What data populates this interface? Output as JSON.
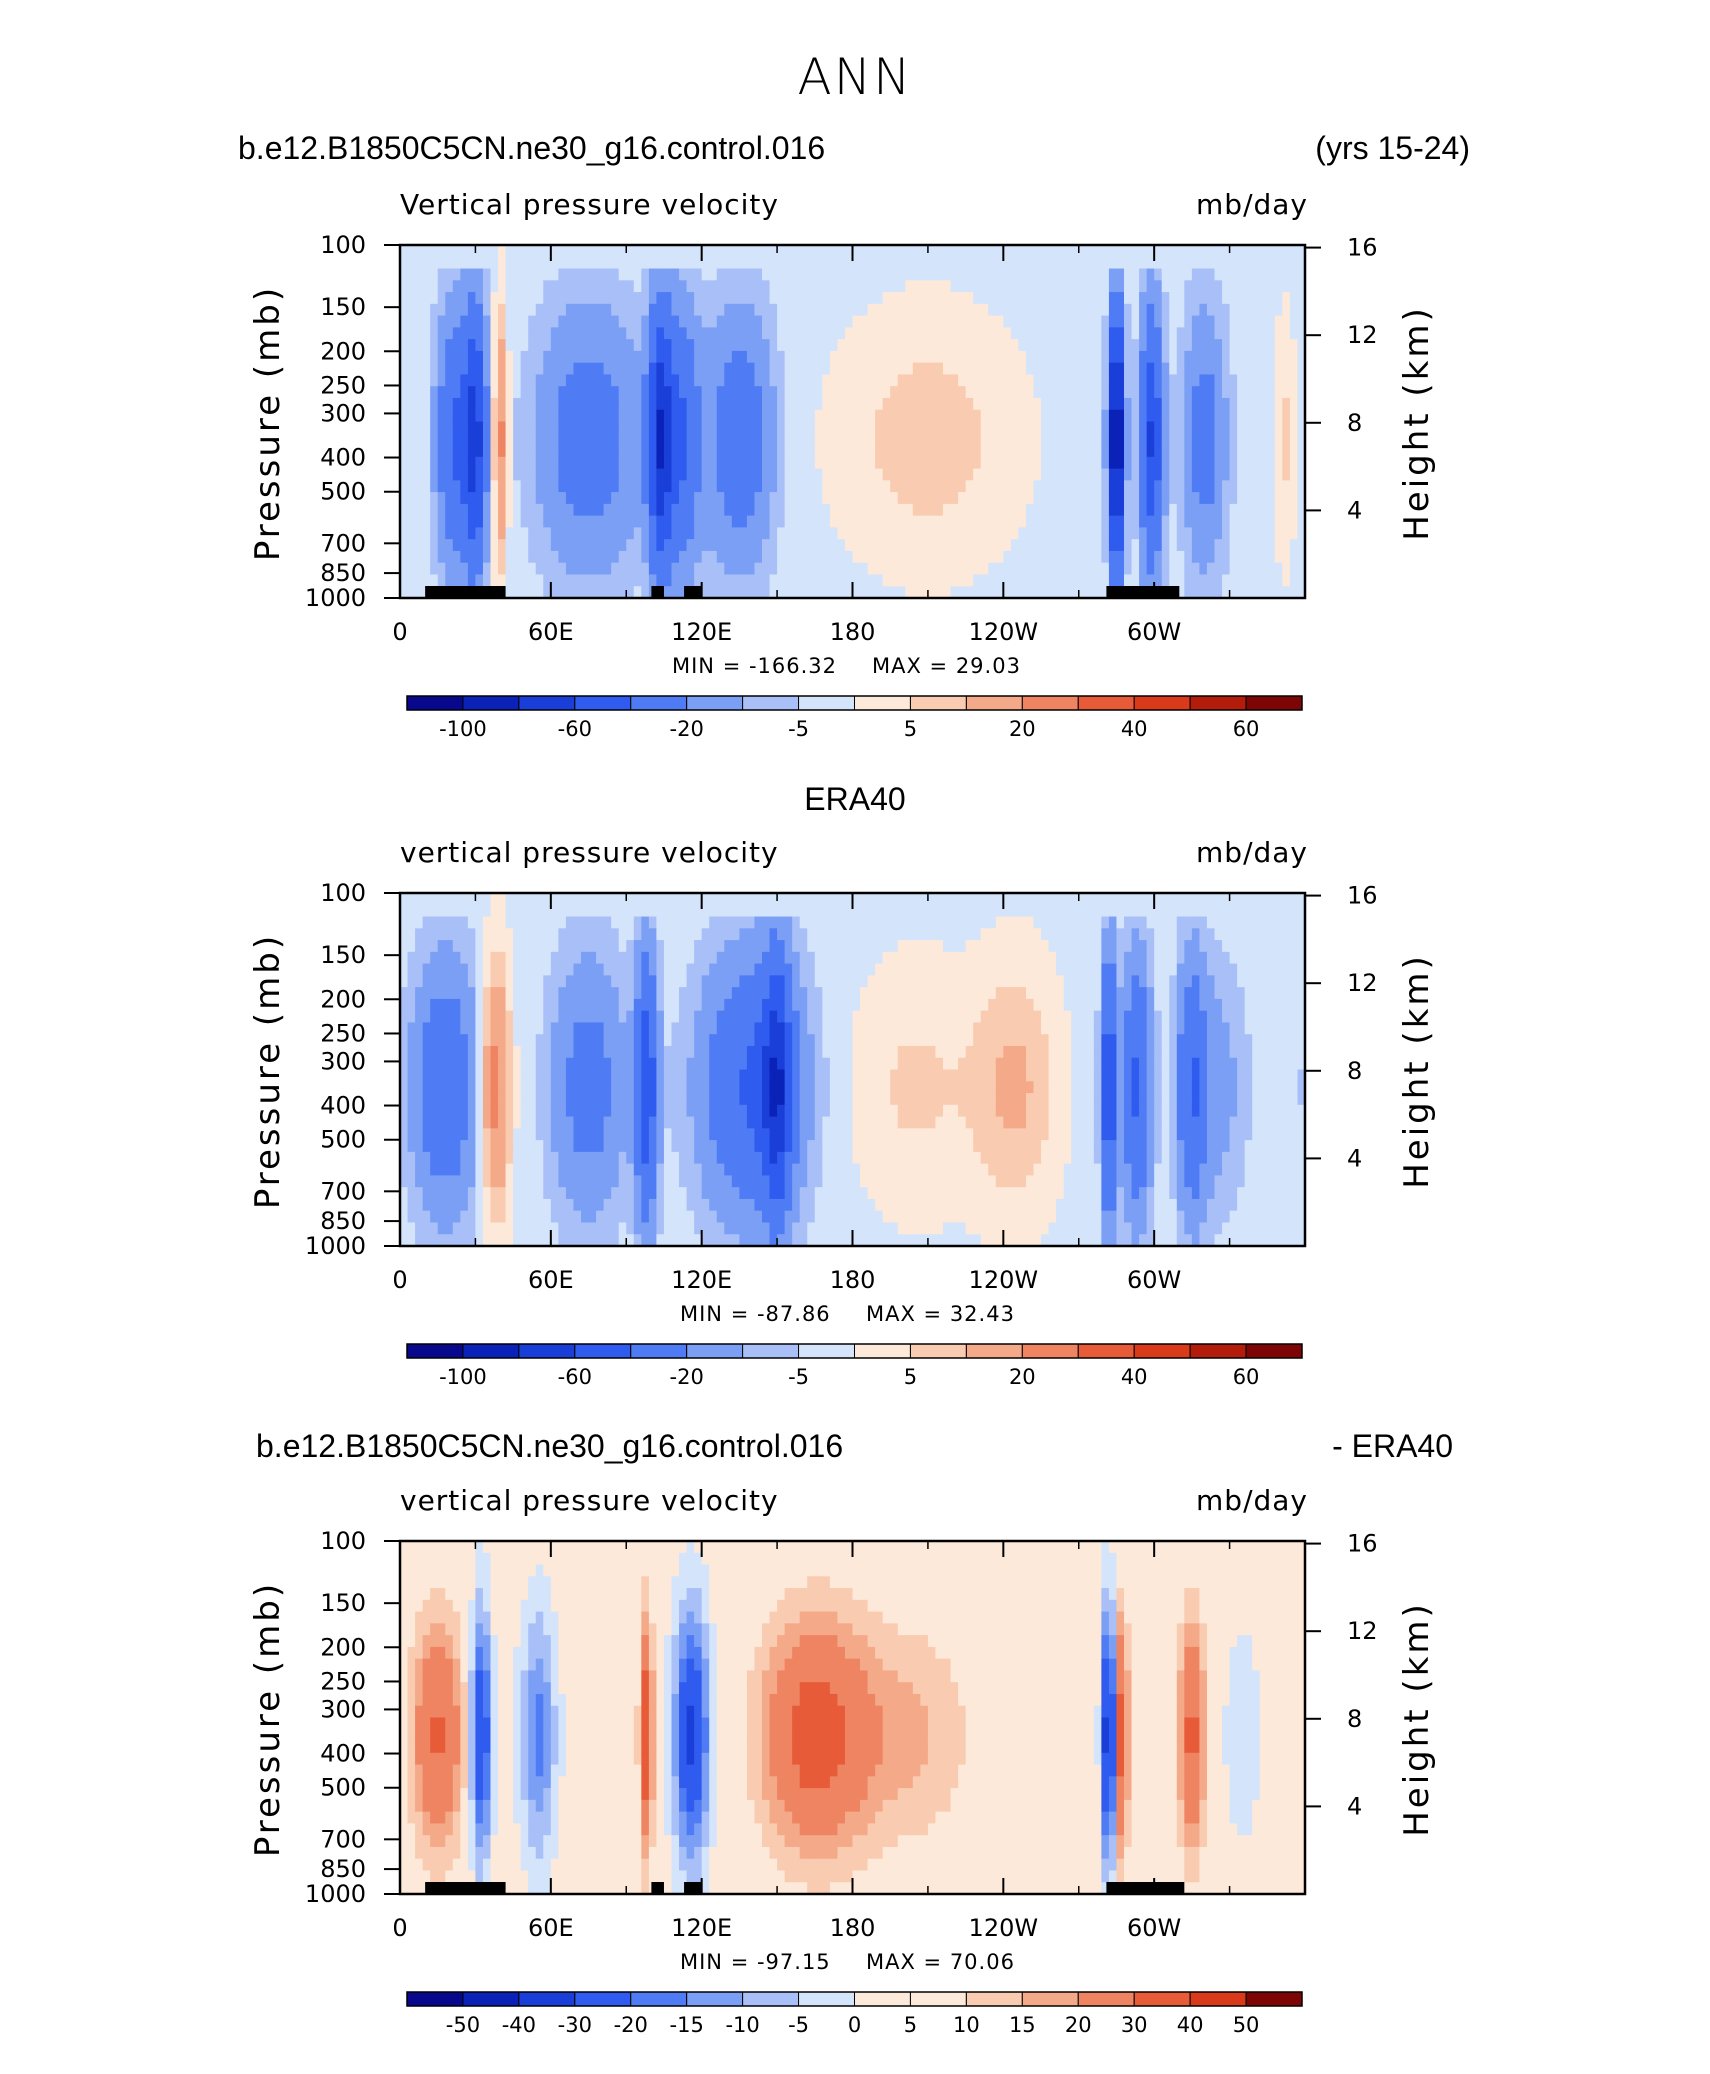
{
  "title": "ANN",
  "chart_data": [
    {
      "type": "heatmap",
      "left_title": "b.e12.B1850C5CN.ne30_g16.control.016",
      "right_title": "(yrs 15-24)",
      "subtitle": "Vertical pressure velocity",
      "units": "mb/day",
      "ylabel": "Pressure (mb)",
      "y2label": "Height (km)",
      "min_label": "MIN = -166.32",
      "max_label": "MAX =   29.03",
      "xticks": [
        "0",
        "60E",
        "120E",
        "180",
        "120W",
        "60W"
      ],
      "yticks": [
        "100",
        "150",
        "200",
        "250",
        "300",
        "400",
        "500",
        "700",
        "850",
        "1000"
      ],
      "y2ticks": [
        "16",
        "12",
        "8",
        "4"
      ],
      "colorbar_labels": [
        "-100",
        "-60",
        "-20",
        "-5",
        "5",
        "20",
        "40",
        "60"
      ],
      "levels": [
        -120,
        -100,
        -80,
        -60,
        -40,
        -20,
        -10,
        -5,
        0,
        5,
        10,
        20,
        30,
        40,
        50,
        60
      ],
      "features": [
        {
          "lon": 22,
          "width": 5,
          "value": -40
        },
        {
          "lon": 30,
          "width": 3,
          "value": -60
        },
        {
          "lon": 40,
          "width": 2,
          "value": 25
        },
        {
          "lon": 75,
          "width": 14,
          "value": -28
        },
        {
          "lon": 103,
          "width": 3,
          "value": -55
        },
        {
          "lon": 110,
          "width": 6,
          "value": -45
        },
        {
          "lon": 135,
          "width": 9,
          "value": -30
        },
        {
          "lon": 210,
          "width": 25,
          "value": 10
        },
        {
          "lon": 285,
          "width": 2,
          "value": -110
        },
        {
          "lon": 299,
          "width": 3,
          "value": -60
        },
        {
          "lon": 320,
          "width": 6,
          "value": -25
        },
        {
          "lon": 352,
          "width": 3,
          "value": 8
        }
      ],
      "terrain_lon": [
        [
          10,
          42
        ],
        [
          100,
          105
        ],
        [
          113,
          120
        ],
        [
          281,
          310
        ]
      ]
    },
    {
      "type": "heatmap",
      "center_title": "ERA40",
      "subtitle": "vertical pressure velocity",
      "units": "mb/day",
      "ylabel": "Pressure (mb)",
      "y2label": "Height (km)",
      "min_label": "MIN = -87.86",
      "max_label": "MAX =   32.43",
      "xticks": [
        "0",
        "60E",
        "120E",
        "180",
        "120W",
        "60W"
      ],
      "yticks": [
        "100",
        "150",
        "200",
        "250",
        "300",
        "400",
        "500",
        "700",
        "850",
        "1000"
      ],
      "y2ticks": [
        "16",
        "12",
        "8",
        "4"
      ],
      "colorbar_labels": [
        "-100",
        "-60",
        "-20",
        "-5",
        "5",
        "20",
        "40",
        "60"
      ],
      "levels": [
        -120,
        -100,
        -80,
        -60,
        -40,
        -20,
        -10,
        -5,
        0,
        5,
        10,
        20,
        30,
        40,
        50,
        60
      ],
      "features": [
        {
          "lon": 18,
          "width": 9,
          "value": -32
        },
        {
          "lon": 38,
          "width": 4,
          "value": 28
        },
        {
          "lon": 75,
          "width": 10,
          "value": -25
        },
        {
          "lon": 98,
          "width": 3,
          "value": -55
        },
        {
          "lon": 140,
          "width": 14,
          "value": -40
        },
        {
          "lon": 150,
          "width": 4,
          "value": -55
        },
        {
          "lon": 205,
          "width": 18,
          "value": 8
        },
        {
          "lon": 245,
          "width": 12,
          "value": 13
        },
        {
          "lon": 282,
          "width": 2,
          "value": -60
        },
        {
          "lon": 293,
          "width": 4,
          "value": -40
        },
        {
          "lon": 315,
          "width": 4,
          "value": -35
        },
        {
          "lon": 325,
          "width": 8,
          "value": -12
        }
      ],
      "terrain_lon": []
    },
    {
      "type": "heatmap",
      "left_title": "b.e12.B1850C5CN.ne30_g16.control.016",
      "right_title": "- ERA40",
      "subtitle": "vertical pressure velocity",
      "units": "mb/day",
      "ylabel": "Pressure (mb)",
      "y2label": "Height (km)",
      "min_label": "MIN = -97.15",
      "max_label": "MAX =   70.06",
      "xticks": [
        "0",
        "60E",
        "120E",
        "180",
        "120W",
        "60W"
      ],
      "yticks": [
        "100",
        "150",
        "200",
        "250",
        "300",
        "400",
        "500",
        "700",
        "850",
        "1000"
      ],
      "y2ticks": [
        "16",
        "12",
        "8",
        "4"
      ],
      "colorbar_labels": [
        "-50",
        "-40",
        "-30",
        "-20",
        "-15",
        "-10",
        "-5",
        "0",
        "5",
        "10",
        "15",
        "20",
        "30",
        "40",
        "50"
      ],
      "levels": [
        -60,
        -50,
        -40,
        -30,
        -20,
        -15,
        -10,
        -5,
        0,
        5,
        10,
        15,
        20,
        30,
        40,
        50,
        60
      ],
      "features": [
        {
          "lon": 15,
          "width": 8,
          "value": 28
        },
        {
          "lon": 32,
          "width": 3,
          "value": -35
        },
        {
          "lon": 55,
          "width": 5,
          "value": -20
        },
        {
          "lon": 98,
          "width": 2,
          "value": 35
        },
        {
          "lon": 116,
          "width": 5,
          "value": -35
        },
        {
          "lon": 165,
          "width": 16,
          "value": 32
        },
        {
          "lon": 205,
          "width": 18,
          "value": 12
        },
        {
          "lon": 250,
          "width": 12,
          "value": 5
        },
        {
          "lon": 282,
          "width": 2,
          "value": -45
        },
        {
          "lon": 287,
          "width": 2,
          "value": 35
        },
        {
          "lon": 315,
          "width": 4,
          "value": 30
        },
        {
          "lon": 335,
          "width": 6,
          "value": -6
        }
      ],
      "terrain_lon": [
        [
          10,
          42
        ],
        [
          100,
          105
        ],
        [
          113,
          120
        ],
        [
          281,
          312
        ]
      ]
    }
  ]
}
